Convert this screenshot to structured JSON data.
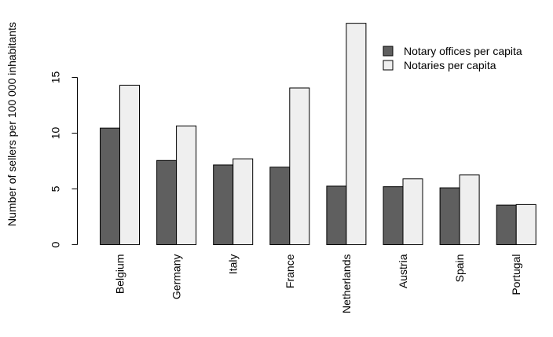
{
  "chart_data": {
    "type": "bar",
    "ylabel": "Number of sellers per 100 000 inhabitants",
    "xlabel": "",
    "title": "",
    "categories": [
      "Belgium",
      "Germany",
      "Italy",
      "France",
      "Netherlands",
      "Austria",
      "Spain",
      "Portugal"
    ],
    "series": [
      {
        "name": "Notary offices per capita",
        "color": "#5f5f5f",
        "values": [
          10.45,
          7.55,
          7.15,
          6.95,
          5.25,
          5.2,
          5.1,
          3.55
        ]
      },
      {
        "name": "Notaries per capita",
        "color": "#efefef",
        "values": [
          14.3,
          10.65,
          7.7,
          14.05,
          19.85,
          5.9,
          6.25,
          3.6
        ]
      }
    ],
    "ylim": [
      0,
      20
    ],
    "yticks": [
      0,
      5,
      10,
      15
    ],
    "legend_position": "top-right",
    "grid": false
  }
}
